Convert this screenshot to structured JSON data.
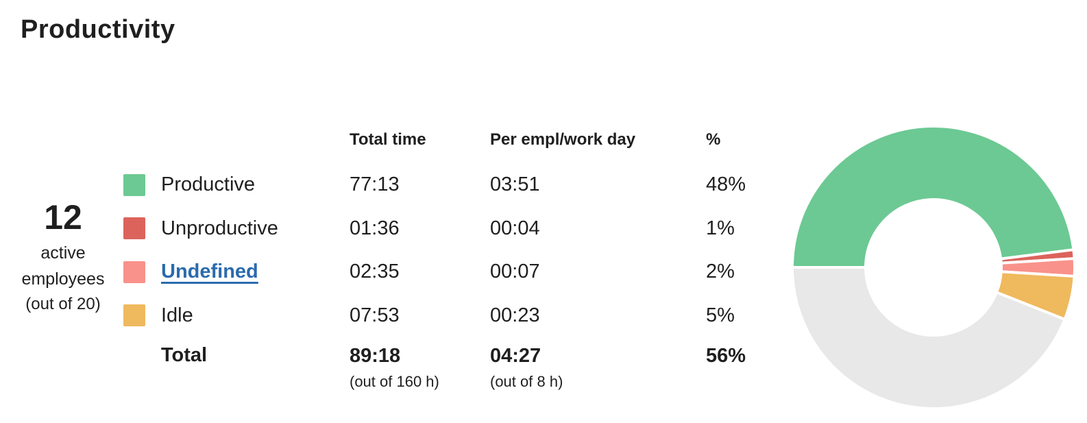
{
  "page": {
    "title": "Productivity"
  },
  "stat": {
    "value": "12",
    "label": "active employees",
    "sublabel": "(out of 20)"
  },
  "table": {
    "headers": {
      "total_time": "Total time",
      "per_empl": "Per empl/work day",
      "percent": "%"
    },
    "rows": [
      {
        "name": "Productive",
        "color": "#6CC993",
        "total_time": "77:13",
        "per_empl": "03:51",
        "percent": "48%",
        "link": false
      },
      {
        "name": "Unproductive",
        "color": "#DC635B",
        "total_time": "01:36",
        "per_empl": "00:04",
        "percent": "1%",
        "link": false
      },
      {
        "name": "Undefined",
        "color": "#F9928B",
        "total_time": "02:35",
        "per_empl": "00:07",
        "percent": "2%",
        "link": true
      },
      {
        "name": "Idle",
        "color": "#EFB95E",
        "total_time": "07:53",
        "per_empl": "00:23",
        "percent": "5%",
        "link": false
      }
    ],
    "total": {
      "label": "Total",
      "total_time": "89:18",
      "total_time_note": "(out of 160 h)",
      "per_empl": "04:27",
      "per_empl_note": "(out of 8 h)",
      "percent": "56%"
    }
  },
  "chart_data": {
    "type": "pie",
    "donut": true,
    "start_angle_deg": 180,
    "direction": "clockwise",
    "inner_radius_ratio": 0.48,
    "segments": [
      {
        "label": "Productive",
        "value": 48,
        "color": "#6CC993"
      },
      {
        "label": "Unproductive",
        "value": 1,
        "color": "#DC635B"
      },
      {
        "label": "Undefined",
        "value": 2,
        "color": "#F9928B"
      },
      {
        "label": "Idle",
        "value": 5,
        "color": "#EFB95E"
      },
      {
        "label": "Remaining",
        "value": 44,
        "color": "#E8E8E8"
      }
    ]
  },
  "colors": {
    "text": "#1F1F1F",
    "link": "#2A6BAD",
    "gap": "#FFFFFF"
  }
}
